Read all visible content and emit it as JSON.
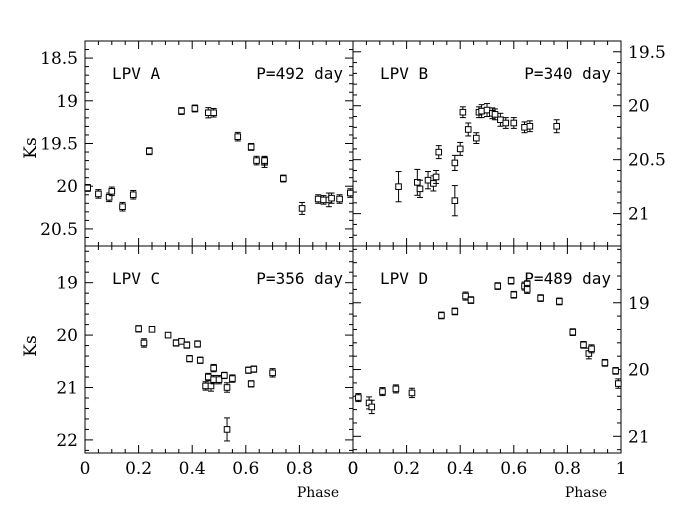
{
  "figure": {
    "x_axis_label": "Phase",
    "y_axis_label": "Ks"
  },
  "chart_data": [
    {
      "type": "scatter",
      "panel": "top-left",
      "name_label": "LPV A",
      "period_label": "P=492 day",
      "xlabel": "",
      "ylabel": "Ks",
      "xlim": [
        0,
        1
      ],
      "ylim": [
        20.7,
        18.3
      ],
      "y_inverted": true,
      "x_ticks": [],
      "y_ticks": [
        "18.5",
        "19",
        "19.5",
        "20",
        "20.5"
      ],
      "y_tick_values": [
        18.5,
        19,
        19.5,
        20,
        20.5
      ],
      "y_tick_side": "left",
      "points": [
        {
          "x": 0.01,
          "y": 20.02,
          "err": 0.04
        },
        {
          "x": 0.05,
          "y": 20.09,
          "err": 0.05
        },
        {
          "x": 0.09,
          "y": 20.13,
          "err": 0.05
        },
        {
          "x": 0.1,
          "y": 20.06,
          "err": 0.05
        },
        {
          "x": 0.14,
          "y": 20.24,
          "err": 0.05
        },
        {
          "x": 0.18,
          "y": 20.1,
          "err": 0.05
        },
        {
          "x": 0.24,
          "y": 19.59,
          "err": 0.04
        },
        {
          "x": 0.36,
          "y": 19.12,
          "err": 0.04
        },
        {
          "x": 0.41,
          "y": 19.09,
          "err": 0.04
        },
        {
          "x": 0.46,
          "y": 19.14,
          "err": 0.06
        },
        {
          "x": 0.48,
          "y": 19.14,
          "err": 0.05
        },
        {
          "x": 0.57,
          "y": 19.42,
          "err": 0.05
        },
        {
          "x": 0.62,
          "y": 19.54,
          "err": 0.04
        },
        {
          "x": 0.64,
          "y": 19.7,
          "err": 0.05
        },
        {
          "x": 0.67,
          "y": 19.72,
          "err": 0.06
        },
        {
          "x": 0.67,
          "y": 19.7,
          "err": 0.05
        },
        {
          "x": 0.74,
          "y": 19.91,
          "err": 0.04
        },
        {
          "x": 0.81,
          "y": 20.26,
          "err": 0.07
        },
        {
          "x": 0.87,
          "y": 20.15,
          "err": 0.05
        },
        {
          "x": 0.89,
          "y": 20.16,
          "err": 0.05
        },
        {
          "x": 0.91,
          "y": 20.16,
          "err": 0.08
        },
        {
          "x": 0.92,
          "y": 20.14,
          "err": 0.06
        },
        {
          "x": 0.95,
          "y": 20.15,
          "err": 0.05
        },
        {
          "x": 0.99,
          "y": 20.08,
          "err": 0.05
        }
      ]
    },
    {
      "type": "scatter",
      "panel": "top-right",
      "name_label": "LPV B",
      "period_label": "P=340 day",
      "xlabel": "",
      "ylabel": "",
      "xlim": [
        0,
        1
      ],
      "ylim": [
        21.3,
        19.4
      ],
      "y_inverted": true,
      "x_ticks": [],
      "y_ticks": [
        "19.5",
        "20",
        "20.5",
        "21"
      ],
      "y_tick_values": [
        19.5,
        20,
        20.5,
        21
      ],
      "y_tick_side": "right",
      "points": [
        {
          "x": 0.17,
          "y": 20.75,
          "err": 0.14
        },
        {
          "x": 0.24,
          "y": 20.71,
          "err": 0.12
        },
        {
          "x": 0.25,
          "y": 20.77,
          "err": 0.08
        },
        {
          "x": 0.28,
          "y": 20.69,
          "err": 0.08
        },
        {
          "x": 0.3,
          "y": 20.72,
          "err": 0.07
        },
        {
          "x": 0.31,
          "y": 20.66,
          "err": 0.06
        },
        {
          "x": 0.32,
          "y": 20.43,
          "err": 0.06
        },
        {
          "x": 0.38,
          "y": 20.88,
          "err": 0.14
        },
        {
          "x": 0.38,
          "y": 20.53,
          "err": 0.07
        },
        {
          "x": 0.4,
          "y": 20.4,
          "err": 0.06
        },
        {
          "x": 0.41,
          "y": 20.06,
          "err": 0.05
        },
        {
          "x": 0.43,
          "y": 20.22,
          "err": 0.06
        },
        {
          "x": 0.46,
          "y": 20.3,
          "err": 0.05
        },
        {
          "x": 0.47,
          "y": 20.06,
          "err": 0.05
        },
        {
          "x": 0.48,
          "y": 20.05,
          "err": 0.06
        },
        {
          "x": 0.5,
          "y": 20.04,
          "err": 0.06
        },
        {
          "x": 0.52,
          "y": 20.07,
          "err": 0.05
        },
        {
          "x": 0.53,
          "y": 20.08,
          "err": 0.05
        },
        {
          "x": 0.55,
          "y": 20.13,
          "err": 0.06
        },
        {
          "x": 0.57,
          "y": 20.16,
          "err": 0.05
        },
        {
          "x": 0.6,
          "y": 20.16,
          "err": 0.05
        },
        {
          "x": 0.64,
          "y": 20.2,
          "err": 0.05
        },
        {
          "x": 0.66,
          "y": 20.19,
          "err": 0.05
        },
        {
          "x": 0.76,
          "y": 20.19,
          "err": 0.06
        }
      ]
    },
    {
      "type": "scatter",
      "panel": "bottom-left",
      "name_label": "LPV C",
      "period_label": "P=356 day",
      "xlabel": "Phase",
      "ylabel": "Ks",
      "xlim": [
        0,
        1
      ],
      "ylim": [
        22.25,
        18.3
      ],
      "y_inverted": true,
      "x_ticks": [
        "0",
        "0.2",
        "0.4",
        "0.6",
        "0.8",
        "0"
      ],
      "x_tick_values": [
        0,
        0.2,
        0.4,
        0.6,
        0.8,
        1.0
      ],
      "y_ticks": [
        "19",
        "20",
        "21",
        "22"
      ],
      "y_tick_values": [
        19,
        20,
        21,
        22
      ],
      "y_tick_side": "left",
      "points": [
        {
          "x": 0.2,
          "y": 19.88,
          "err": 0.06
        },
        {
          "x": 0.22,
          "y": 20.15,
          "err": 0.08
        },
        {
          "x": 0.25,
          "y": 19.89,
          "err": 0.05
        },
        {
          "x": 0.31,
          "y": 20.0,
          "err": 0.05
        },
        {
          "x": 0.34,
          "y": 20.15,
          "err": 0.06
        },
        {
          "x": 0.36,
          "y": 20.12,
          "err": 0.05
        },
        {
          "x": 0.38,
          "y": 20.19,
          "err": 0.06
        },
        {
          "x": 0.39,
          "y": 20.45,
          "err": 0.06
        },
        {
          "x": 0.42,
          "y": 20.17,
          "err": 0.06
        },
        {
          "x": 0.43,
          "y": 20.48,
          "err": 0.06
        },
        {
          "x": 0.45,
          "y": 20.97,
          "err": 0.08
        },
        {
          "x": 0.46,
          "y": 20.8,
          "err": 0.07
        },
        {
          "x": 0.47,
          "y": 20.97,
          "err": 0.1
        },
        {
          "x": 0.48,
          "y": 20.63,
          "err": 0.07
        },
        {
          "x": 0.48,
          "y": 20.85,
          "err": 0.08
        },
        {
          "x": 0.5,
          "y": 20.85,
          "err": 0.08
        },
        {
          "x": 0.52,
          "y": 20.77,
          "err": 0.06
        },
        {
          "x": 0.53,
          "y": 21.0,
          "err": 0.09
        },
        {
          "x": 0.53,
          "y": 21.8,
          "err": 0.22
        },
        {
          "x": 0.55,
          "y": 20.83,
          "err": 0.07
        },
        {
          "x": 0.61,
          "y": 20.67,
          "err": 0.06
        },
        {
          "x": 0.62,
          "y": 20.93,
          "err": 0.06
        },
        {
          "x": 0.63,
          "y": 20.65,
          "err": 0.06
        },
        {
          "x": 0.7,
          "y": 20.72,
          "err": 0.08
        }
      ]
    },
    {
      "type": "scatter",
      "panel": "bottom-right",
      "name_label": "LPV D",
      "period_label": "P=489 day",
      "xlabel": "Phase",
      "ylabel": "",
      "xlim": [
        0,
        1
      ],
      "ylim": [
        21.25,
        18.15
      ],
      "y_inverted": true,
      "x_ticks": [
        "0",
        "0.2",
        "0.4",
        "0.6",
        "0.8",
        "1"
      ],
      "x_tick_values": [
        0,
        0.2,
        0.4,
        0.6,
        0.8,
        1.0
      ],
      "y_ticks": [
        "19",
        "20",
        "21"
      ],
      "y_tick_values": [
        19,
        20,
        21
      ],
      "y_tick_side": "right",
      "points": [
        {
          "x": 0.02,
          "y": 20.42,
          "err": 0.06
        },
        {
          "x": 0.06,
          "y": 20.5,
          "err": 0.09
        },
        {
          "x": 0.07,
          "y": 20.56,
          "err": 0.1
        },
        {
          "x": 0.11,
          "y": 20.33,
          "err": 0.06
        },
        {
          "x": 0.16,
          "y": 20.29,
          "err": 0.06
        },
        {
          "x": 0.22,
          "y": 20.35,
          "err": 0.07
        },
        {
          "x": 0.33,
          "y": 19.19,
          "err": 0.05
        },
        {
          "x": 0.38,
          "y": 19.13,
          "err": 0.05
        },
        {
          "x": 0.42,
          "y": 18.9,
          "err": 0.06
        },
        {
          "x": 0.44,
          "y": 18.96,
          "err": 0.05
        },
        {
          "x": 0.54,
          "y": 18.75,
          "err": 0.05
        },
        {
          "x": 0.59,
          "y": 18.67,
          "err": 0.05
        },
        {
          "x": 0.6,
          "y": 18.88,
          "err": 0.05
        },
        {
          "x": 0.64,
          "y": 18.75,
          "err": 0.06
        },
        {
          "x": 0.65,
          "y": 18.72,
          "err": 0.05
        },
        {
          "x": 0.65,
          "y": 18.8,
          "err": 0.06
        },
        {
          "x": 0.7,
          "y": 18.93,
          "err": 0.05
        },
        {
          "x": 0.77,
          "y": 18.98,
          "err": 0.05
        },
        {
          "x": 0.82,
          "y": 19.44,
          "err": 0.05
        },
        {
          "x": 0.86,
          "y": 19.63,
          "err": 0.05
        },
        {
          "x": 0.88,
          "y": 19.76,
          "err": 0.08
        },
        {
          "x": 0.89,
          "y": 19.69,
          "err": 0.06
        },
        {
          "x": 0.94,
          "y": 19.9,
          "err": 0.05
        },
        {
          "x": 0.98,
          "y": 20.02,
          "err": 0.05
        },
        {
          "x": 0.99,
          "y": 20.21,
          "err": 0.07
        }
      ]
    }
  ]
}
